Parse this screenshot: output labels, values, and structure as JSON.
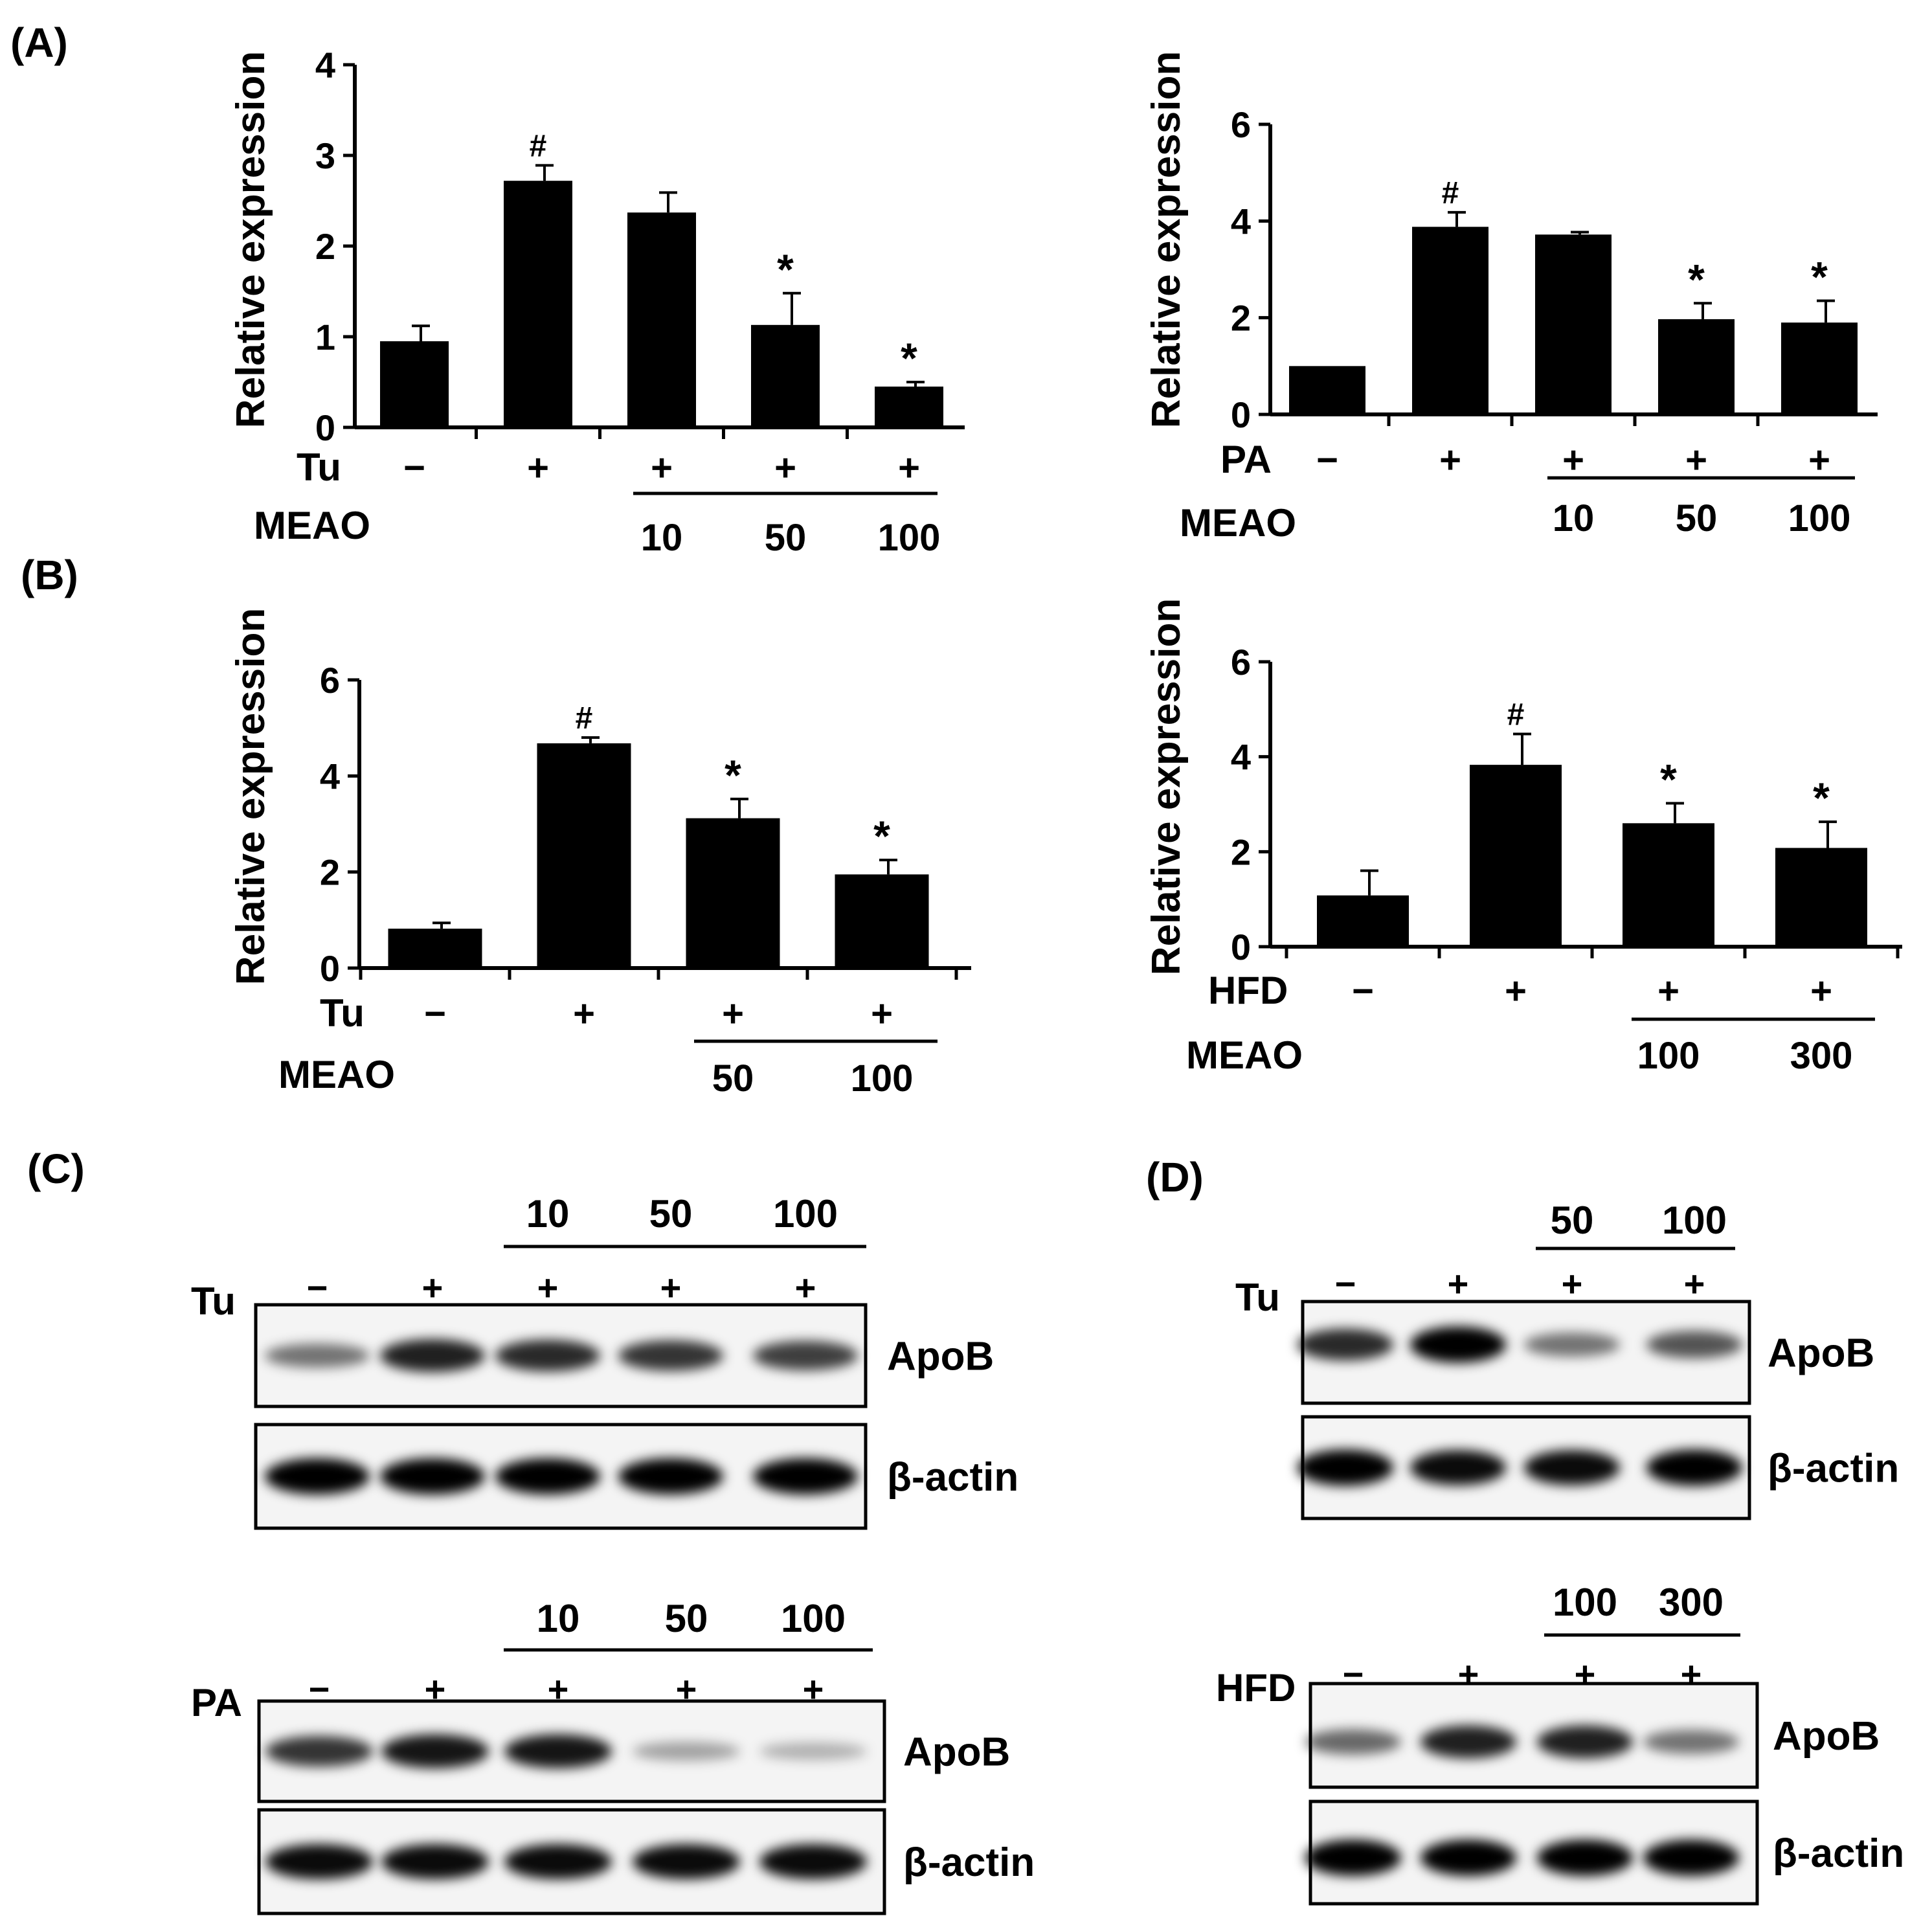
{
  "panel_labels": {
    "A": "(A)",
    "B": "(B)",
    "C": "(C)",
    "D": "(D)"
  },
  "chart_data": [
    {
      "type": "bar",
      "ylabel": "Relative expression",
      "ylim": [
        0,
        4
      ],
      "yticks": [
        0,
        1,
        2,
        3,
        4
      ],
      "treatment_label": "Tu",
      "treatment_marks": [
        "−",
        "+",
        "+",
        "+",
        "+"
      ],
      "dose_label": "MEAO",
      "doses": [
        "",
        "",
        "10",
        "50",
        "100"
      ],
      "values": [
        0.95,
        2.72,
        2.37,
        1.13,
        0.45
      ],
      "errors": [
        0.17,
        0.17,
        0.22,
        0.35,
        0.05
      ],
      "annotations": [
        "",
        "#",
        "",
        "*",
        "*"
      ]
    },
    {
      "type": "bar",
      "ylabel": "Relative expression",
      "ylim": [
        0,
        6
      ],
      "yticks": [
        0,
        2,
        4,
        6
      ],
      "treatment_label": "PA",
      "treatment_marks": [
        "−",
        "+",
        "+",
        "+",
        "+"
      ],
      "dose_label": "MEAO",
      "doses": [
        "",
        "",
        "10",
        "50",
        "100"
      ],
      "values": [
        1.0,
        3.88,
        3.72,
        1.97,
        1.9
      ],
      "errors": [
        0.0,
        0.3,
        0.05,
        0.33,
        0.45
      ],
      "annotations": [
        "",
        "#",
        "",
        "*",
        "*"
      ]
    },
    {
      "type": "bar",
      "ylabel": "Relative expression",
      "ylim": [
        0,
        6
      ],
      "yticks": [
        0,
        2,
        4,
        6
      ],
      "treatment_label": "Tu",
      "treatment_marks": [
        "−",
        "+",
        "+",
        "+"
      ],
      "dose_label": "MEAO",
      "doses": [
        "",
        "",
        "50",
        "100"
      ],
      "values": [
        0.82,
        4.68,
        3.12,
        1.95
      ],
      "errors": [
        0.12,
        0.12,
        0.4,
        0.3
      ],
      "annotations": [
        "",
        "#",
        "*",
        "*"
      ]
    },
    {
      "type": "bar",
      "ylabel": "Relative expression",
      "ylim": [
        0,
        6
      ],
      "yticks": [
        0,
        2,
        4,
        6
      ],
      "treatment_label": "HFD",
      "treatment_marks": [
        "−",
        "+",
        "+",
        "+"
      ],
      "dose_label": "MEAO",
      "doses": [
        "",
        "",
        "100",
        "300"
      ],
      "values": [
        1.08,
        3.83,
        2.6,
        2.08
      ],
      "errors": [
        0.52,
        0.65,
        0.42,
        0.55
      ],
      "annotations": [
        "",
        "#",
        "*",
        "*"
      ]
    }
  ],
  "blots": [
    {
      "doses": [
        "10",
        "50",
        "100"
      ],
      "treatment_label": "Tu",
      "treatment_marks": [
        "−",
        "+",
        "+",
        "+",
        "+"
      ],
      "rows": [
        {
          "label": "ApoB",
          "intensities": [
            0.45,
            0.85,
            0.8,
            0.75,
            0.7
          ]
        },
        {
          "label": "β-actin",
          "intensities": [
            1.0,
            1.0,
            1.0,
            1.0,
            1.0
          ]
        }
      ]
    },
    {
      "doses": [
        "10",
        "50",
        "100"
      ],
      "treatment_label": "PA",
      "treatment_marks": [
        "−",
        "+",
        "+",
        "+",
        "+"
      ],
      "rows": [
        {
          "label": "ApoB",
          "intensities": [
            0.75,
            0.9,
            0.9,
            0.22,
            0.15
          ]
        },
        {
          "label": "β-actin",
          "intensities": [
            0.95,
            0.95,
            0.95,
            0.95,
            0.95
          ]
        }
      ]
    },
    {
      "doses": [
        "50",
        "100"
      ],
      "treatment_label": "Tu",
      "treatment_marks": [
        "−",
        "+",
        "+",
        "+"
      ],
      "rows": [
        {
          "label": "ApoB",
          "intensities": [
            0.8,
            1.0,
            0.45,
            0.6
          ]
        },
        {
          "label": "β-actin",
          "intensities": [
            1.0,
            0.95,
            0.95,
            1.0
          ]
        }
      ]
    },
    {
      "doses": [
        "100",
        "300"
      ],
      "treatment_label": "HFD",
      "treatment_marks": [
        "−",
        "+",
        "+",
        "+"
      ],
      "rows": [
        {
          "label": "ApoB",
          "intensities": [
            0.5,
            0.85,
            0.85,
            0.45
          ]
        },
        {
          "label": "β-actin",
          "intensities": [
            1.0,
            1.0,
            1.0,
            1.0
          ]
        }
      ]
    }
  ]
}
